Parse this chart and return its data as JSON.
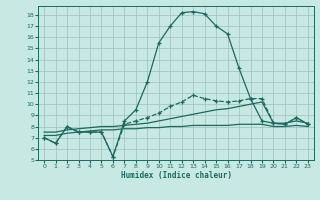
{
  "xlabel": "Humidex (Indice chaleur)",
  "background_color": "#c8e8e4",
  "grid_color": "#9dbfbb",
  "line_color": "#1a6b5e",
  "xlim": [
    -0.5,
    23.5
  ],
  "ylim": [
    5,
    18.8
  ],
  "xticks": [
    0,
    1,
    2,
    3,
    4,
    5,
    6,
    7,
    8,
    9,
    10,
    11,
    12,
    13,
    14,
    15,
    16,
    17,
    18,
    19,
    20,
    21,
    22,
    23
  ],
  "yticks": [
    5,
    6,
    7,
    8,
    9,
    10,
    11,
    12,
    13,
    14,
    15,
    16,
    17,
    18
  ],
  "series": [
    {
      "x": [
        0,
        1,
        2,
        3,
        4,
        5,
        6,
        7,
        8,
        9,
        10,
        11,
        12,
        13,
        14,
        15,
        16,
        17,
        18,
        19,
        20,
        21,
        22,
        23
      ],
      "y": [
        7.0,
        6.5,
        8.0,
        7.5,
        7.5,
        7.5,
        5.3,
        8.5,
        9.5,
        12.0,
        15.5,
        17.0,
        18.2,
        18.3,
        18.1,
        17.0,
        16.3,
        13.2,
        10.5,
        8.5,
        8.3,
        8.2,
        8.8,
        8.2
      ],
      "marker": "+",
      "linestyle": "-",
      "lw": 0.9
    },
    {
      "x": [
        0,
        1,
        2,
        3,
        4,
        5,
        6,
        7,
        8,
        9,
        10,
        11,
        12,
        13,
        14,
        15,
        16,
        17,
        18,
        19,
        20,
        21,
        22,
        23
      ],
      "y": [
        7.0,
        6.5,
        8.0,
        7.5,
        7.5,
        7.5,
        5.3,
        8.2,
        8.5,
        8.8,
        9.2,
        9.8,
        10.2,
        10.8,
        10.5,
        10.3,
        10.2,
        10.3,
        10.5,
        10.5,
        8.3,
        8.2,
        8.8,
        8.2
      ],
      "marker": "+",
      "linestyle": "--",
      "lw": 0.9
    },
    {
      "x": [
        0,
        1,
        2,
        3,
        4,
        5,
        6,
        7,
        8,
        9,
        10,
        11,
        12,
        13,
        14,
        15,
        16,
        17,
        18,
        19,
        20,
        21,
        22,
        23
      ],
      "y": [
        7.5,
        7.5,
        7.7,
        7.8,
        7.9,
        8.0,
        8.0,
        8.1,
        8.2,
        8.3,
        8.5,
        8.7,
        8.9,
        9.1,
        9.3,
        9.5,
        9.6,
        9.8,
        10.0,
        10.2,
        8.3,
        8.3,
        8.5,
        8.3
      ],
      "marker": null,
      "linestyle": "-",
      "lw": 0.9
    },
    {
      "x": [
        0,
        1,
        2,
        3,
        4,
        5,
        6,
        7,
        8,
        9,
        10,
        11,
        12,
        13,
        14,
        15,
        16,
        17,
        18,
        19,
        20,
        21,
        22,
        23
      ],
      "y": [
        7.2,
        7.2,
        7.4,
        7.5,
        7.6,
        7.7,
        7.7,
        7.8,
        7.8,
        7.9,
        7.9,
        8.0,
        8.0,
        8.1,
        8.1,
        8.1,
        8.1,
        8.2,
        8.2,
        8.2,
        8.0,
        8.0,
        8.1,
        8.0
      ],
      "marker": null,
      "linestyle": "-",
      "lw": 0.9
    }
  ]
}
